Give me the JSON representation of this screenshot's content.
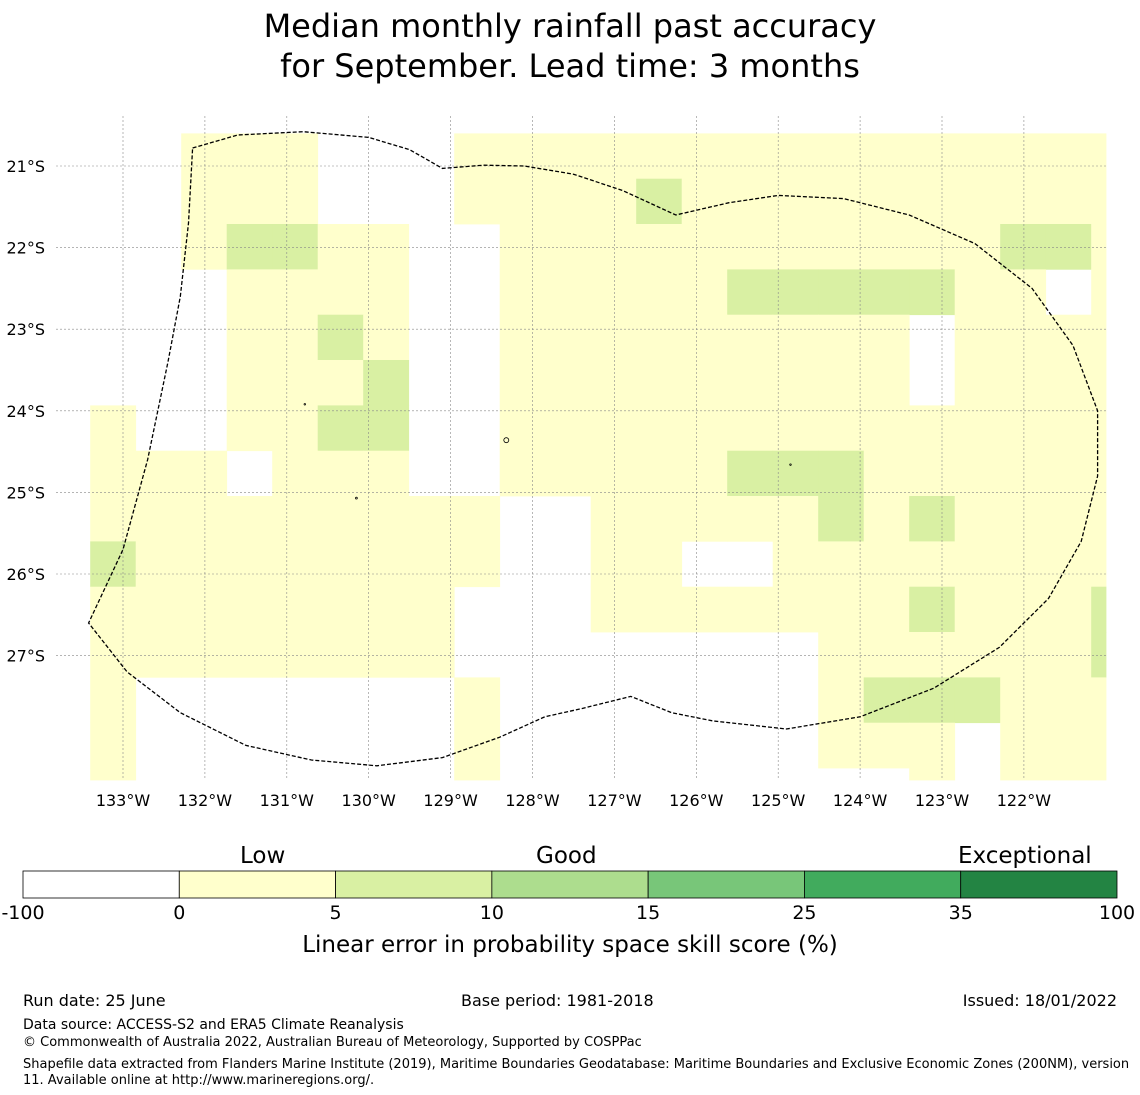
{
  "title": {
    "line1": "Median monthly rainfall past accuracy",
    "line2": "for September. Lead time: 3 months"
  },
  "map": {
    "lat_labels": [
      "21°S",
      "22°S",
      "23°S",
      "24°S",
      "25°S",
      "26°S",
      "27°S"
    ],
    "lon_labels": [
      "133°W",
      "132°W",
      "131°W",
      "130°W",
      "129°W",
      "128°W",
      "127°W",
      "126°W",
      "125°W",
      "124°W",
      "123°W",
      "122°W"
    ],
    "colors": {
      "c0": "#ffffcc",
      "c1": "#d9f0a3",
      "boundary": "#000000",
      "grid": "#888888"
    },
    "cell_grid": {
      "lon_start": -133.4,
      "lat_start": -20.6,
      "step": 0.55556,
      "legend": "0 = no colour, 1 = score 0 to 5, 2 = score 5 to 10",
      "rows": [
        "00111000111111111111111",
        "00111000111121111111111",
        "00122110011111111111221",
        "00011110011111222221101",
        "00011210011111111101111",
        "00011120011111111101111",
        "10011220011111111111111",
        "11101110011111222111111",
        "11111111100111112121111",
        "21111111100110011111111",
        "11111111000111111121112",
        "11111111000000001111112",
        "10000000100000001222111",
        "10000000100000001110111",
        "10000000100000000010111",
        "01000000000000000000001",
        "00001100000000000000000",
        "00000011000000000200000",
        "00000001000000000000000",
        "00000001000000000000000",
        "00000000100000000000000",
        "00000000100000000000000",
        "00000000100000000000000",
        "00000000100000000000000"
      ]
    }
  },
  "colorbar": {
    "categories": [
      "Low",
      "Good",
      "Exceptional"
    ],
    "ticks": [
      "-100",
      "0",
      "5",
      "10",
      "15",
      "25",
      "35",
      "100"
    ],
    "colors": [
      "#ffffff",
      "#ffffcc",
      "#d9f0a3",
      "#addd8e",
      "#78c679",
      "#41ab5d",
      "#238443"
    ],
    "label": "Linear error in probability space skill score (%)"
  },
  "footer": {
    "run_date": "Run date: 25 June",
    "base_period": "Base period: 1981-2018",
    "issued": "Issued: 18/01/2022",
    "data_source": "Data source: ACCESS-S2 and ERA5 Climate Reanalysis",
    "copyright": "© Commonwealth of Australia 2022, Australian Bureau of Meteorology, Supported by COSPPac",
    "shapefile": "Shapefile data extracted from Flanders Marine Institute (2019), Maritime Boundaries Geodatabase: Maritime Boundaries and Exclusive Economic Zones (200NM), version 11. Available online at http://www.marineregions.org/."
  }
}
